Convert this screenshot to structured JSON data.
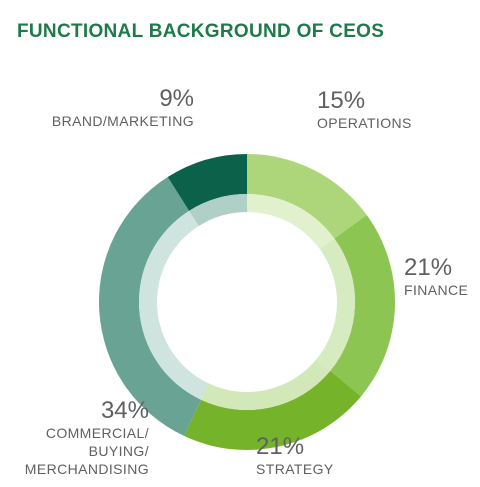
{
  "title": "FUNCTIONAL BACKGROUND OF CEOS",
  "chart_data": {
    "type": "pie",
    "title": "FUNCTIONAL BACKGROUND OF CEOS",
    "slices": [
      {
        "label": "OPERATIONS",
        "value": 15,
        "value_label": "15%",
        "color": "#add67a",
        "inner_color": "#e1f0cd"
      },
      {
        "label": "FINANCE",
        "value": 21,
        "value_label": "21%",
        "color": "#8cc552",
        "inner_color": "#d7ebc0"
      },
      {
        "label": "STRATEGY",
        "value": 21,
        "value_label": "21%",
        "color": "#75b42a",
        "inner_color": "#d3e8b9"
      },
      {
        "label": "COMMERCIAL/ BUYING/ MERCHANDISING",
        "label_lines": [
          "COMMERCIAL/",
          "BUYING/",
          "MERCHANDISING"
        ],
        "value": 34,
        "value_label": "34%",
        "color": "#68a394",
        "inner_color": "#d0e4df"
      },
      {
        "label": "BRAND/MARKETING",
        "value": 9,
        "value_label": "9%",
        "color": "#0b6149",
        "inner_color": "#b0cfc6"
      }
    ]
  }
}
